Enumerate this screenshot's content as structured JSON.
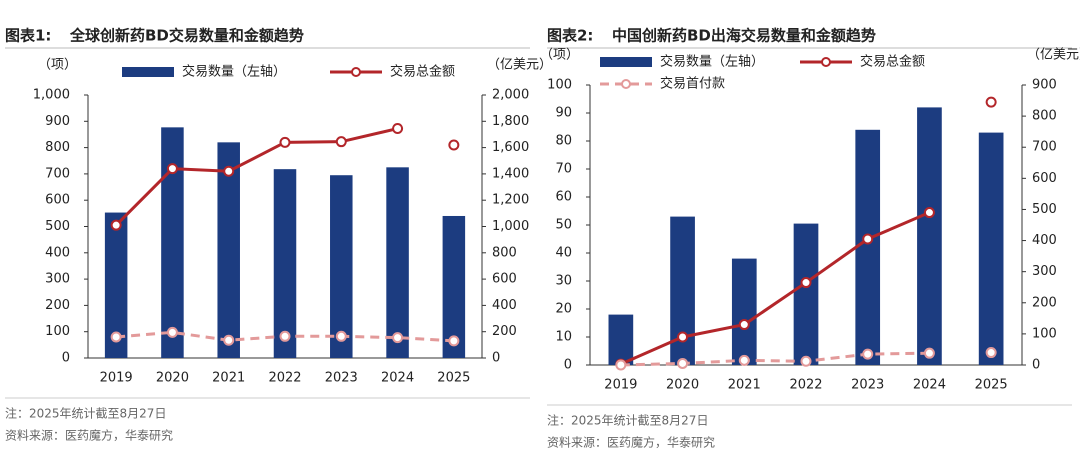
{
  "chart_data": [
    {
      "type": "bar",
      "title_label": "图表1:",
      "title": "全球创新药BD交易数量和金额趋势",
      "y_label": "（项）",
      "y2_label": "（亿美元）",
      "categories": [
        "2019",
        "2020",
        "2021",
        "2022",
        "2023",
        "2024",
        "2025"
      ],
      "ylim": [
        0,
        1000
      ],
      "yticks": [
        0,
        100,
        200,
        300,
        400,
        500,
        600,
        700,
        800,
        900,
        {
          "value": 1000,
          "label": "1,000"
        }
      ],
      "y2lim": [
        0,
        2000
      ],
      "y2ticks": [
        0,
        200,
        400,
        600,
        800,
        {
          "value": 1000,
          "label": "1,000"
        },
        {
          "value": 1200,
          "label": "1,200"
        },
        {
          "value": 1400,
          "label": "1,400"
        },
        {
          "value": 1600,
          "label": "1,600"
        },
        {
          "value": 1800,
          "label": "1,800"
        },
        {
          "value": 2000,
          "label": "2,000"
        }
      ],
      "series": [
        {
          "name": "交易数量（左轴）",
          "type": "bar",
          "color": "#1c3c80",
          "values": [
            553,
            877,
            820,
            718,
            695,
            725,
            540
          ]
        },
        {
          "name": "交易总金额",
          "type": "line",
          "axis": "y2",
          "color": "#b3262a",
          "open_last": true,
          "values": [
            1010,
            1440,
            1420,
            1640,
            1645,
            1745,
            1620
          ]
        },
        {
          "type": "line",
          "axis": "y2",
          "color": "#e39a9a",
          "dashed": true,
          "values": [
            160,
            195,
            135,
            165,
            165,
            155,
            130
          ]
        }
      ],
      "notes": [
        "注：2025年统计截至8月27日",
        "资料来源：医药魔方，华泰研究"
      ]
    },
    {
      "type": "bar",
      "title_label": "图表2:",
      "title": "中国创新药BD出海交易数量和金额趋势",
      "y_label": "（项）",
      "y2_label": "（亿美元）",
      "categories": [
        "2019",
        "2020",
        "2021",
        "2022",
        "2023",
        "2024",
        "2025"
      ],
      "ylim": [
        0,
        100
      ],
      "yticks": [
        0,
        10,
        20,
        30,
        40,
        50,
        60,
        70,
        80,
        90,
        100
      ],
      "y2lim": [
        0,
        900
      ],
      "y2ticks": [
        0,
        100,
        200,
        300,
        400,
        500,
        600,
        700,
        800,
        900
      ],
      "series": [
        {
          "name": "交易数量（左轴）",
          "type": "bar",
          "color": "#1c3c80",
          "values": [
            18,
            53,
            38,
            50.5,
            84,
            92,
            83
          ]
        },
        {
          "name": "交易总金额",
          "type": "line",
          "axis": "y2",
          "color": "#b3262a",
          "open_last": true,
          "values": [
            3,
            90,
            130,
            265,
            405,
            490,
            845
          ]
        },
        {
          "name": "交易首付款",
          "type": "line",
          "axis": "y2",
          "color": "#e39a9a",
          "dashed": true,
          "open_last": true,
          "values": [
            0,
            5,
            15,
            12,
            35,
            38,
            40
          ]
        }
      ],
      "notes": [
        "注：2025年统计截至8月27日",
        "资料来源：医药魔方，华泰研究"
      ]
    }
  ]
}
